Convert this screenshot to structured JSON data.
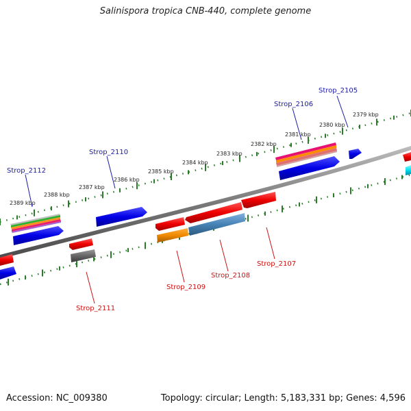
{
  "title": "Salinispora tropica CNB-440, complete genome",
  "footer": {
    "accession": "Accession: NC_009380",
    "summary": "Topology: circular; Length: 5,183,331 bp; Genes: 4,596"
  },
  "colors": {
    "forward_label": "#1a1aa6",
    "reverse_label": "#cc1111",
    "backbone": "#7a7a7a",
    "tick": "#2a7a2a",
    "blue_gene": "#1010e0",
    "red_gene": "#ee1111"
  },
  "tick_labels": [
    "2379 kbp",
    "2380 kbp",
    "2381 kbp",
    "2382 kbp",
    "2383 kbp",
    "2384 kbp",
    "2385 kbp",
    "2386 kbp",
    "2387 kbp",
    "2388 kbp",
    "2389 kbp"
  ],
  "gene_labels": {
    "forward": [
      "Strop_2105",
      "Strop_2106",
      "Strop_2110",
      "Strop_2112"
    ],
    "reverse": [
      "Strop_2107",
      "Strop_2108",
      "Strop_2109",
      "Strop_2111"
    ]
  }
}
